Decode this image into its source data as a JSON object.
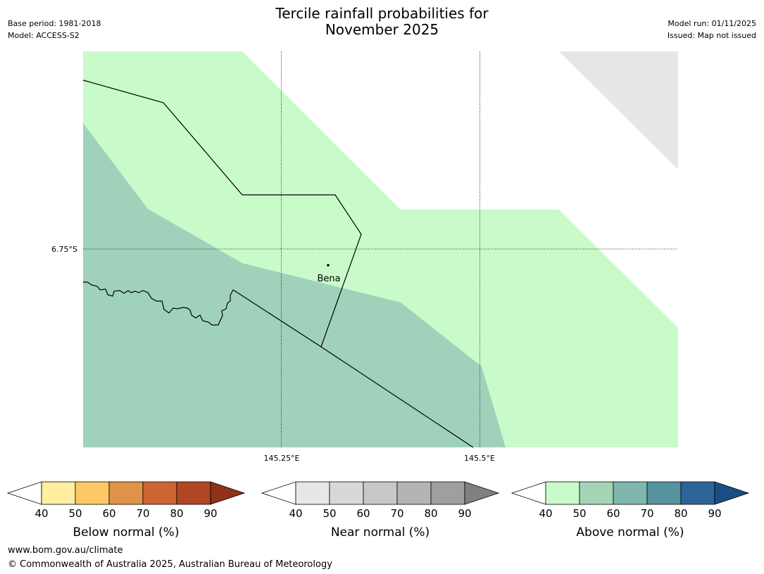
{
  "header": {
    "base_period": "Base period: 1981-2018",
    "model": "Model: ACCESS-S2",
    "title_line1": "Tercile rainfall probabilities for",
    "title_line2": "November 2025",
    "model_run": "Model run: 01/11/2025",
    "issued": "Issued: Map not issued"
  },
  "map": {
    "latitude_labels": [
      "6.75°S"
    ],
    "longitude_labels": [
      "145.25°E",
      "145.5°E"
    ],
    "place": "Bena",
    "colors": {
      "above_40_50": "#c9fbca",
      "above_50_60": "#a0d2bb",
      "near_40_50": "#e6e6e6",
      "boundary": "#000000"
    }
  },
  "legends": [
    {
      "id": "below",
      "title": "Below normal (%)",
      "ticks": [
        "40",
        "50",
        "60",
        "70",
        "80",
        "90"
      ],
      "colors": [
        "#ffeda0",
        "#fec965",
        "#e1924a",
        "#cd6533",
        "#b04624",
        "#8f311b"
      ]
    },
    {
      "id": "near",
      "title": "Near normal (%)",
      "ticks": [
        "40",
        "50",
        "60",
        "70",
        "80",
        "90"
      ],
      "colors": [
        "#e7e7e7",
        "#d8d8d8",
        "#c8c8c8",
        "#b4b4b4",
        "#9f9f9f",
        "#808080"
      ]
    },
    {
      "id": "above",
      "title": "Above normal (%)",
      "ticks": [
        "40",
        "50",
        "60",
        "70",
        "80",
        "90"
      ],
      "colors": [
        "#c9fbca",
        "#a3d4b6",
        "#80b7ad",
        "#5792a1",
        "#2e6398",
        "#1a4c85"
      ]
    }
  ],
  "footer": {
    "url": "www.bom.gov.au/climate",
    "copyright": "© Commonwealth of Australia 2025, Australian Bureau of Meteorology"
  }
}
